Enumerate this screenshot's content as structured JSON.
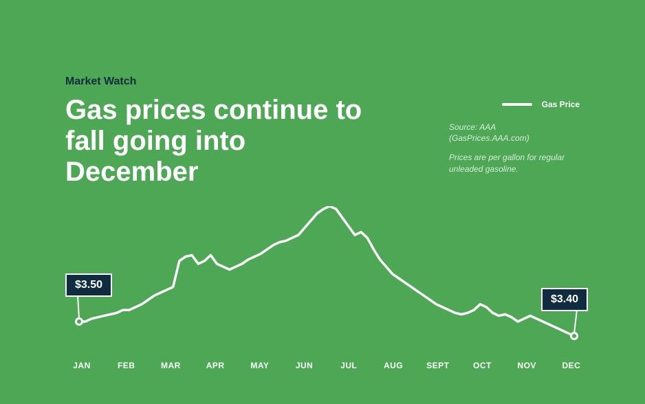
{
  "colors": {
    "background": "#4da755",
    "line": "#ffffff",
    "text_dark": "#0f2d3f",
    "text_light": "#ffffff",
    "callout_bg": "#0f2d3f",
    "callout_border": "#ffffff"
  },
  "header": {
    "kicker": "Market Watch",
    "headline": "Gas prices continue to fall going into December"
  },
  "legend": {
    "label": "Gas Price",
    "source_label": "Source:",
    "source_name": "AAA",
    "source_detail": "(GasPrices.AAA.com)",
    "note": "Prices are per gallon for regular unleaded gasoline."
  },
  "chart": {
    "type": "line",
    "line_color": "#ffffff",
    "line_width": 3.5,
    "y_domain": [
      3.3,
      4.3
    ],
    "x_labels": [
      "JAN",
      "FEB",
      "MAR",
      "APR",
      "MAY",
      "JUN",
      "JUL",
      "AUG",
      "SEPT",
      "OCT",
      "NOV",
      "DEC"
    ],
    "series": [
      3.5,
      3.5,
      3.52,
      3.53,
      3.54,
      3.55,
      3.56,
      3.58,
      3.58,
      3.6,
      3.62,
      3.65,
      3.68,
      3.7,
      3.72,
      3.74,
      3.92,
      3.95,
      3.96,
      3.9,
      3.92,
      3.96,
      3.9,
      3.88,
      3.86,
      3.88,
      3.9,
      3.93,
      3.95,
      3.97,
      4.0,
      4.03,
      4.05,
      4.06,
      4.08,
      4.1,
      4.15,
      4.2,
      4.25,
      4.28,
      4.3,
      4.28,
      4.22,
      4.16,
      4.1,
      4.12,
      4.08,
      4.0,
      3.93,
      3.88,
      3.83,
      3.8,
      3.77,
      3.74,
      3.71,
      3.68,
      3.65,
      3.62,
      3.6,
      3.58,
      3.56,
      3.55,
      3.56,
      3.58,
      3.62,
      3.6,
      3.56,
      3.54,
      3.55,
      3.53,
      3.5,
      3.52,
      3.54,
      3.52,
      3.5,
      3.48,
      3.46,
      3.44,
      3.42,
      3.4
    ],
    "callouts": [
      {
        "index": 0,
        "label": "$3.50",
        "place": "left"
      },
      {
        "index": 79,
        "label": "$3.40",
        "place": "right"
      }
    ]
  }
}
